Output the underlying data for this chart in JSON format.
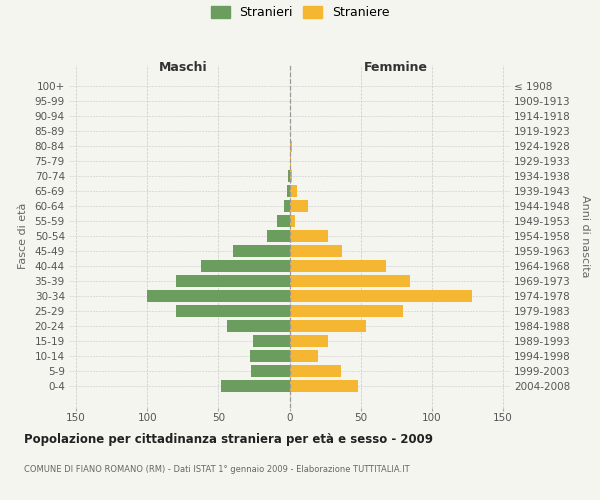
{
  "age_groups": [
    "100+",
    "95-99",
    "90-94",
    "85-89",
    "80-84",
    "75-79",
    "70-74",
    "65-69",
    "60-64",
    "55-59",
    "50-54",
    "45-49",
    "40-44",
    "35-39",
    "30-34",
    "25-29",
    "20-24",
    "15-19",
    "10-14",
    "5-9",
    "0-4"
  ],
  "birth_years": [
    "≤ 1908",
    "1909-1913",
    "1914-1918",
    "1919-1923",
    "1924-1928",
    "1929-1933",
    "1934-1938",
    "1939-1943",
    "1944-1948",
    "1949-1953",
    "1954-1958",
    "1959-1963",
    "1964-1968",
    "1969-1973",
    "1974-1978",
    "1979-1983",
    "1984-1988",
    "1989-1993",
    "1994-1998",
    "1999-2003",
    "2004-2008"
  ],
  "males": [
    0,
    0,
    0,
    0,
    0,
    0,
    1,
    2,
    4,
    9,
    16,
    40,
    62,
    80,
    100,
    80,
    44,
    26,
    28,
    27,
    48
  ],
  "females": [
    0,
    0,
    0,
    0,
    2,
    1,
    2,
    5,
    13,
    4,
    27,
    37,
    68,
    85,
    128,
    80,
    54,
    27,
    20,
    36,
    48
  ],
  "male_color": "#6b9e5e",
  "female_color": "#f5b731",
  "background_color": "#f5f5f0",
  "grid_color": "#c8c8c8",
  "dashed_color": "#999999",
  "title": "Popolazione per cittadinanza straniera per età e sesso - 2009",
  "subtitle": "COMUNE DI FIANO ROMANO (RM) - Dati ISTAT 1° gennaio 2009 - Elaborazione TUTTITALIA.IT",
  "left_header": "Maschi",
  "right_header": "Femmine",
  "ylabel_left": "Fasce di età",
  "ylabel_right": "Anni di nascita",
  "legend_male": "Stranieri",
  "legend_female": "Straniere",
  "xlim": 155,
  "xtick_vals": [
    -150,
    -100,
    -50,
    0,
    50,
    100,
    150
  ],
  "xtick_labels": [
    "150",
    "100",
    "50",
    "0",
    "50",
    "100",
    "150"
  ]
}
